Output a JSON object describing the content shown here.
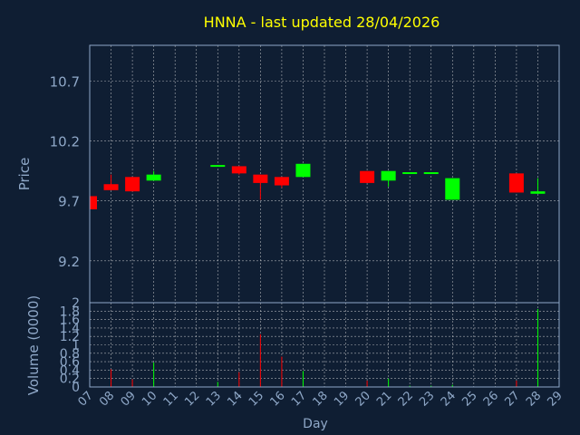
{
  "chart_data": {
    "type": "candlestick",
    "title": "HNNA - last updated 28/04/2026",
    "xlabel": "Day",
    "x_ticks": [
      "07",
      "08",
      "09",
      "10",
      "11",
      "12",
      "13",
      "14",
      "15",
      "16",
      "17",
      "18",
      "19",
      "20",
      "21",
      "22",
      "23",
      "24",
      "25",
      "26",
      "27",
      "28",
      "29"
    ],
    "price_panel": {
      "ylabel": "Price",
      "ylim": [
        8.85,
        11.0
      ],
      "y_ticks": [
        "9.2",
        "9.7",
        "10.2",
        "10.7"
      ],
      "y_tick_values": [
        9.2,
        9.7,
        10.2,
        10.7
      ],
      "grid": true
    },
    "volume_panel": {
      "ylabel": "Volume (0000)",
      "ylim": [
        0,
        2
      ],
      "y_ticks": [
        "0",
        "0.2",
        "0.4",
        "0.6",
        "0.8",
        "1",
        "1.2",
        "1.4",
        "1.6",
        "1.8",
        "2"
      ],
      "y_tick_values": [
        0,
        0.2,
        0.4,
        0.6,
        0.8,
        1.0,
        1.2,
        1.4,
        1.6,
        1.8,
        2.0
      ],
      "grid": true
    },
    "candles": [
      {
        "day": 7,
        "open": 9.74,
        "high": 9.74,
        "low": 9.63,
        "close": 9.63,
        "volume": 0.02
      },
      {
        "day": 8,
        "open": 9.84,
        "high": 9.92,
        "low": 9.79,
        "close": 9.79,
        "volume": 0.42
      },
      {
        "day": 9,
        "open": 9.9,
        "high": 9.9,
        "low": 9.78,
        "close": 9.78,
        "volume": 0.18
      },
      {
        "day": 10,
        "open": 9.87,
        "high": 9.95,
        "low": 9.87,
        "close": 9.92,
        "volume": 0.58
      },
      {
        "day": 13,
        "open": 9.99,
        "high": 10.0,
        "low": 9.99,
        "close": 10.0,
        "volume": 0.12
      },
      {
        "day": 14,
        "open": 9.99,
        "high": 9.99,
        "low": 9.92,
        "close": 9.93,
        "volume": 0.35
      },
      {
        "day": 15,
        "open": 9.92,
        "high": 9.92,
        "low": 9.71,
        "close": 9.85,
        "volume": 1.25
      },
      {
        "day": 16,
        "open": 9.9,
        "high": 9.9,
        "low": 9.81,
        "close": 9.83,
        "volume": 0.72
      },
      {
        "day": 17,
        "open": 9.9,
        "high": 10.01,
        "low": 9.9,
        "close": 10.01,
        "volume": 0.38
      },
      {
        "day": 20,
        "open": 9.95,
        "high": 9.95,
        "low": 9.85,
        "close": 9.85,
        "volume": 0.15
      },
      {
        "day": 21,
        "open": 9.87,
        "high": 9.95,
        "low": 9.82,
        "close": 9.95,
        "volume": 0.2
      },
      {
        "day": 22,
        "open": 9.93,
        "high": 9.94,
        "low": 9.93,
        "close": 9.94,
        "volume": 0.03
      },
      {
        "day": 23,
        "open": 9.93,
        "high": 9.94,
        "low": 9.93,
        "close": 9.94,
        "volume": 0.03
      },
      {
        "day": 24,
        "open": 9.71,
        "high": 9.89,
        "low": 9.71,
        "close": 9.89,
        "volume": 0.05
      },
      {
        "day": 27,
        "open": 9.93,
        "high": 9.93,
        "low": 9.77,
        "close": 9.77,
        "volume": 0.15
      },
      {
        "day": 28,
        "open": 9.76,
        "high": 9.89,
        "low": 9.76,
        "close": 9.78,
        "volume": 1.85
      }
    ],
    "colors": {
      "background": "#0f1e33",
      "up": "#00ff00",
      "down": "#ff0000",
      "grid": "#e0e0e0",
      "axis_text": "#8fa8c8",
      "title": "#ffff00"
    }
  }
}
